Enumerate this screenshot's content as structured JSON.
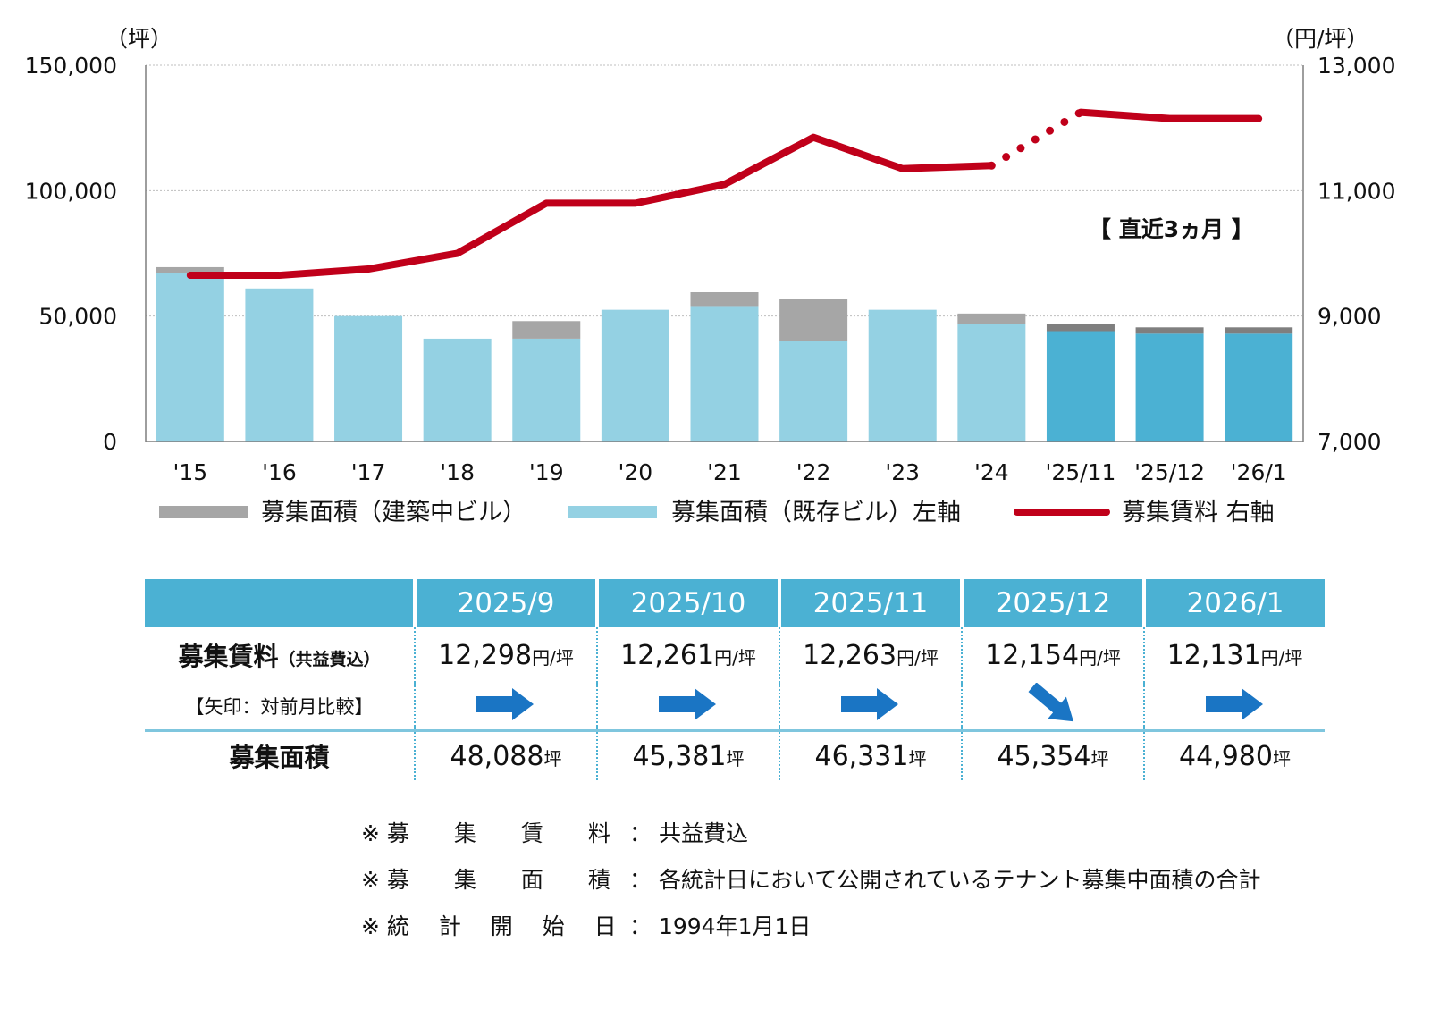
{
  "colors": {
    "existing": "#94d1e3",
    "existing_recent": "#4bb1d3",
    "construction": "#a6a6a6",
    "construction_recent": "#7f7f7f",
    "rent_line": "#c0001a",
    "arrow": "#1a75c4",
    "grid": "#bfbfbf"
  },
  "chart_data": {
    "type": "bar+line",
    "categories": [
      "'15",
      "'16",
      "'17",
      "'18",
      "'19",
      "'20",
      "'21",
      "'22",
      "'23",
      "'24",
      "'25/11",
      "'25/12",
      "'26/1"
    ],
    "left_axis": {
      "unit": "（坪）",
      "ylim": [
        0,
        150000
      ],
      "ticks": [
        "0",
        "50,000",
        "100,000",
        "150,000"
      ]
    },
    "right_axis": {
      "unit": "（円/坪）",
      "ylim": [
        7000,
        13000
      ],
      "ticks": [
        "7,000",
        "9,000",
        "11,000",
        "13,000"
      ]
    },
    "series": [
      {
        "name": "募集面積(既存ビル)左軸",
        "axis": "left",
        "values": [
          67000,
          61000,
          50000,
          41000,
          41000,
          52500,
          54000,
          40000,
          52500,
          47000,
          44000,
          43000,
          43000
        ]
      },
      {
        "name": "募集面積(建築中ビル)",
        "axis": "left",
        "values": [
          2500,
          0,
          0,
          0,
          7000,
          0,
          5500,
          17000,
          0,
          4000,
          2800,
          2500,
          2500
        ]
      },
      {
        "name": "募集賃料 右軸",
        "axis": "right",
        "values": [
          9650,
          9650,
          9750,
          10000,
          10800,
          10800,
          11100,
          11850,
          11350,
          11400,
          12250,
          12150,
          12150
        ]
      }
    ],
    "annotation": "【 直近3ヵ月 】",
    "legend": {
      "construction": "募集面積（建築中ビル）",
      "existing": "募集面積（既存ビル）左軸",
      "rent": "募集賃料 右軸"
    }
  },
  "table": {
    "columns": [
      "2025/9",
      "2025/10",
      "2025/11",
      "2025/12",
      "2026/1"
    ],
    "rent_label": "募集賃料",
    "rent_label_sub": "（共益費込）",
    "arrow_label": "【矢印：対前月比較】",
    "area_label": "募集面積",
    "rent_values": [
      "12,298",
      "12,261",
      "12,263",
      "12,154",
      "12,131"
    ],
    "rent_unit": "円/坪",
    "arrow_dirs": [
      "flat",
      "flat",
      "flat",
      "down",
      "flat"
    ],
    "area_values": [
      "48,088",
      "45,381",
      "46,331",
      "45,354",
      "44,980"
    ],
    "area_unit": "坪"
  },
  "notes": [
    {
      "label": "※ 募　　集　　賃　　料",
      "value": "：  共益費込"
    },
    {
      "label": "※ 募　　集　　面　　積",
      "value": "：  各統計日において公開されているテナント募集中面積の合計"
    },
    {
      "label": "※ 統　 計　 開　 始　 日",
      "value": "：  1994年1月1日"
    }
  ]
}
